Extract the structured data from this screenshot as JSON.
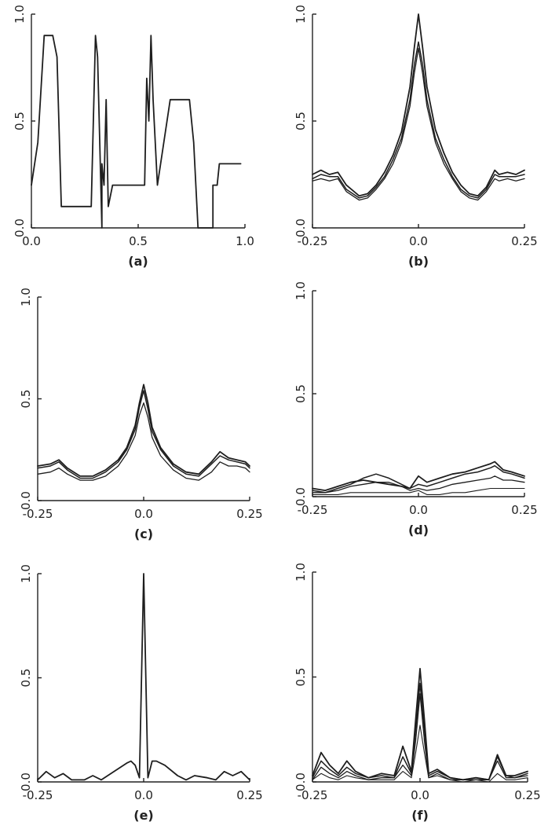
{
  "chart_data": [
    {
      "panel_label": "(a)",
      "type": "line",
      "xlim": [
        0.0,
        1.0
      ],
      "ylim": [
        0.0,
        1.0
      ],
      "xticks": [
        "0.0",
        "0.5",
        "1.0"
      ],
      "yticks": [
        "0.0",
        "0.5",
        "1.0"
      ],
      "series": [
        {
          "x": [
            0.0,
            0.03,
            0.06,
            0.1,
            0.12,
            0.14,
            0.28,
            0.3,
            0.31,
            0.33,
            0.33,
            0.34,
            0.35,
            0.36,
            0.38,
            0.53,
            0.54,
            0.55,
            0.56,
            0.57,
            0.59,
            0.65,
            0.67,
            0.74,
            0.76,
            0.78,
            0.78,
            0.85,
            0.85,
            0.87,
            0.88,
            0.9,
            0.98
          ],
          "y": [
            0.2,
            0.4,
            0.9,
            0.9,
            0.8,
            0.1,
            0.1,
            0.9,
            0.8,
            0.0,
            0.3,
            0.2,
            0.6,
            0.1,
            0.2,
            0.2,
            0.7,
            0.5,
            0.9,
            0.6,
            0.2,
            0.6,
            0.6,
            0.6,
            0.4,
            0.0,
            0.0,
            0.0,
            0.2,
            0.2,
            0.3,
            0.3,
            0.3
          ]
        }
      ]
    },
    {
      "panel_label": "(b)",
      "type": "line",
      "xlim": [
        -0.25,
        0.25
      ],
      "ylim": [
        0.0,
        1.0
      ],
      "xticks": [
        "-0.25",
        "0.0",
        "0.25"
      ],
      "yticks": [
        "0.0",
        "0.5",
        "1.0"
      ],
      "series": [
        {
          "x": [
            -0.25,
            -0.23,
            -0.21,
            -0.19,
            -0.17,
            -0.14,
            -0.12,
            -0.1,
            -0.08,
            -0.06,
            -0.04,
            -0.02,
            -0.01,
            0.0,
            0.01,
            0.02,
            0.04,
            0.06,
            0.08,
            0.1,
            0.12,
            0.14,
            0.16,
            0.18,
            0.19,
            0.21,
            0.23,
            0.25
          ],
          "y": [
            0.25,
            0.27,
            0.25,
            0.26,
            0.2,
            0.15,
            0.16,
            0.2,
            0.26,
            0.34,
            0.45,
            0.66,
            0.84,
            1.0,
            0.84,
            0.66,
            0.46,
            0.35,
            0.26,
            0.2,
            0.16,
            0.15,
            0.19,
            0.27,
            0.25,
            0.26,
            0.25,
            0.27
          ]
        },
        {
          "x": [
            -0.25,
            -0.23,
            -0.21,
            -0.19,
            -0.17,
            -0.14,
            -0.12,
            -0.1,
            -0.08,
            -0.06,
            -0.04,
            -0.02,
            -0.01,
            0.0,
            0.01,
            0.02,
            0.04,
            0.06,
            0.08,
            0.1,
            0.12,
            0.14,
            0.16,
            0.18,
            0.19,
            0.21,
            0.23,
            0.25
          ],
          "y": [
            0.23,
            0.25,
            0.24,
            0.24,
            0.18,
            0.14,
            0.15,
            0.19,
            0.24,
            0.32,
            0.42,
            0.6,
            0.76,
            0.87,
            0.76,
            0.6,
            0.42,
            0.32,
            0.24,
            0.18,
            0.15,
            0.14,
            0.18,
            0.25,
            0.24,
            0.24,
            0.24,
            0.25
          ]
        },
        {
          "x": [
            -0.25,
            -0.23,
            -0.21,
            -0.19,
            -0.17,
            -0.14,
            -0.12,
            -0.1,
            -0.08,
            -0.06,
            -0.04,
            -0.02,
            -0.01,
            0.0,
            0.01,
            0.02,
            0.04,
            0.06,
            0.08,
            0.1,
            0.12,
            0.14,
            0.16,
            0.18,
            0.19,
            0.21,
            0.23,
            0.25
          ],
          "y": [
            0.22,
            0.23,
            0.22,
            0.23,
            0.17,
            0.13,
            0.14,
            0.18,
            0.23,
            0.3,
            0.4,
            0.57,
            0.72,
            0.84,
            0.72,
            0.57,
            0.4,
            0.3,
            0.23,
            0.17,
            0.14,
            0.13,
            0.17,
            0.23,
            0.22,
            0.23,
            0.22,
            0.23
          ]
        }
      ]
    },
    {
      "panel_label": "(c)",
      "type": "line",
      "xlim": [
        -0.25,
        0.25
      ],
      "ylim": [
        0.0,
        1.0
      ],
      "xticks": [
        "-0.25",
        "0.0",
        "0.25"
      ],
      "yticks": [
        "0.0",
        "0.5",
        "1.0"
      ],
      "series": [
        {
          "x": [
            -0.25,
            -0.22,
            -0.2,
            -0.18,
            -0.15,
            -0.12,
            -0.09,
            -0.06,
            -0.04,
            -0.02,
            -0.01,
            0.0,
            0.01,
            0.02,
            0.04,
            0.07,
            0.1,
            0.13,
            0.16,
            0.18,
            0.2,
            0.22,
            0.24,
            0.25
          ],
          "y": [
            0.17,
            0.18,
            0.2,
            0.16,
            0.12,
            0.12,
            0.15,
            0.2,
            0.26,
            0.37,
            0.48,
            0.57,
            0.48,
            0.36,
            0.26,
            0.18,
            0.14,
            0.13,
            0.19,
            0.24,
            0.21,
            0.2,
            0.19,
            0.17
          ]
        },
        {
          "x": [
            -0.25,
            -0.22,
            -0.2,
            -0.18,
            -0.15,
            -0.12,
            -0.09,
            -0.06,
            -0.04,
            -0.02,
            -0.01,
            0.0,
            0.01,
            0.02,
            0.04,
            0.07,
            0.1,
            0.13,
            0.16,
            0.18,
            0.2,
            0.22,
            0.24,
            0.25
          ],
          "y": [
            0.16,
            0.17,
            0.19,
            0.15,
            0.11,
            0.11,
            0.14,
            0.19,
            0.25,
            0.35,
            0.46,
            0.54,
            0.45,
            0.34,
            0.25,
            0.17,
            0.13,
            0.12,
            0.18,
            0.22,
            0.2,
            0.19,
            0.18,
            0.16
          ]
        },
        {
          "x": [
            -0.25,
            -0.22,
            -0.2,
            -0.18,
            -0.15,
            -0.12,
            -0.09,
            -0.06,
            -0.04,
            -0.02,
            -0.01,
            0.0,
            0.01,
            0.02,
            0.04,
            0.07,
            0.1,
            0.13,
            0.16,
            0.18,
            0.2,
            0.22,
            0.24,
            0.25
          ],
          "y": [
            0.13,
            0.14,
            0.16,
            0.13,
            0.1,
            0.1,
            0.12,
            0.17,
            0.23,
            0.32,
            0.42,
            0.48,
            0.41,
            0.31,
            0.22,
            0.15,
            0.11,
            0.1,
            0.14,
            0.19,
            0.17,
            0.17,
            0.16,
            0.14
          ]
        }
      ]
    },
    {
      "panel_label": "(d)",
      "type": "line",
      "xlim": [
        -0.25,
        0.25
      ],
      "ylim": [
        0.0,
        1.0
      ],
      "xticks": [
        "-0.25",
        "0.0",
        "0.25"
      ],
      "yticks": [
        "0.0",
        "0.5",
        "1.0"
      ],
      "series": [
        {
          "x": [
            -0.25,
            -0.22,
            -0.19,
            -0.16,
            -0.13,
            -0.1,
            -0.07,
            -0.04,
            -0.02,
            0.0,
            0.02,
            0.05,
            0.08,
            0.11,
            0.14,
            0.17,
            0.18,
            0.2,
            0.22,
            0.25
          ],
          "y": [
            0.04,
            0.03,
            0.05,
            0.07,
            0.08,
            0.07,
            0.06,
            0.05,
            0.04,
            0.1,
            0.07,
            0.09,
            0.11,
            0.12,
            0.14,
            0.16,
            0.17,
            0.13,
            0.12,
            0.1
          ]
        },
        {
          "x": [
            -0.25,
            -0.22,
            -0.19,
            -0.16,
            -0.13,
            -0.1,
            -0.07,
            -0.04,
            -0.02,
            0.0,
            0.02,
            0.05,
            0.08,
            0.11,
            0.14,
            0.17,
            0.18,
            0.2,
            0.22,
            0.25
          ],
          "y": [
            0.03,
            0.02,
            0.04,
            0.06,
            0.09,
            0.11,
            0.09,
            0.06,
            0.04,
            0.06,
            0.05,
            0.07,
            0.09,
            0.11,
            0.12,
            0.14,
            0.15,
            0.12,
            0.11,
            0.09
          ]
        },
        {
          "x": [
            -0.25,
            -0.22,
            -0.19,
            -0.16,
            -0.13,
            -0.1,
            -0.07,
            -0.04,
            -0.02,
            0.0,
            0.02,
            0.05,
            0.08,
            0.11,
            0.14,
            0.17,
            0.18,
            0.2,
            0.22,
            0.25
          ],
          "y": [
            0.02,
            0.02,
            0.03,
            0.05,
            0.06,
            0.07,
            0.07,
            0.05,
            0.03,
            0.04,
            0.03,
            0.04,
            0.06,
            0.07,
            0.08,
            0.09,
            0.1,
            0.08,
            0.08,
            0.07
          ]
        },
        {
          "x": [
            -0.25,
            -0.22,
            -0.19,
            -0.16,
            -0.13,
            -0.1,
            -0.07,
            -0.04,
            -0.02,
            0.0,
            0.02,
            0.05,
            0.08,
            0.11,
            0.14,
            0.17,
            0.18,
            0.2,
            0.22,
            0.25
          ],
          "y": [
            0.01,
            0.01,
            0.01,
            0.02,
            0.02,
            0.02,
            0.02,
            0.02,
            0.02,
            0.03,
            0.01,
            0.01,
            0.02,
            0.02,
            0.03,
            0.04,
            0.04,
            0.04,
            0.04,
            0.04
          ]
        }
      ]
    },
    {
      "panel_label": "(e)",
      "type": "line",
      "xlim": [
        -0.25,
        0.25
      ],
      "ylim": [
        0.0,
        1.0
      ],
      "xticks": [
        "-0.25",
        "0.0",
        "0.25"
      ],
      "yticks": [
        "0.0",
        "0.5",
        "1.0"
      ],
      "series": [
        {
          "x": [
            -0.25,
            -0.23,
            -0.21,
            -0.19,
            -0.17,
            -0.14,
            -0.12,
            -0.1,
            -0.07,
            -0.04,
            -0.03,
            -0.02,
            -0.01,
            0.0,
            0.01,
            0.02,
            0.03,
            0.05,
            0.08,
            0.1,
            0.12,
            0.15,
            0.17,
            0.19,
            0.21,
            0.23,
            0.25
          ],
          "y": [
            0.01,
            0.05,
            0.02,
            0.04,
            0.01,
            0.01,
            0.03,
            0.01,
            0.05,
            0.09,
            0.1,
            0.08,
            0.02,
            1.0,
            0.02,
            0.1,
            0.1,
            0.08,
            0.03,
            0.01,
            0.03,
            0.02,
            0.01,
            0.05,
            0.03,
            0.05,
            0.01
          ]
        }
      ]
    },
    {
      "panel_label": "(f)",
      "type": "line",
      "xlim": [
        -0.25,
        0.25
      ],
      "ylim": [
        0.0,
        1.0
      ],
      "xticks": [
        "-0.25",
        "0.0",
        "0.25"
      ],
      "yticks": [
        "0.0",
        "0.5",
        "1.0"
      ],
      "series": [
        {
          "x": [
            -0.25,
            -0.23,
            -0.21,
            -0.19,
            -0.17,
            -0.15,
            -0.12,
            -0.09,
            -0.06,
            -0.04,
            -0.02,
            -0.01,
            0.0,
            0.01,
            0.02,
            0.04,
            0.07,
            0.1,
            0.13,
            0.16,
            0.18,
            0.2,
            0.22,
            0.25
          ],
          "y": [
            0.03,
            0.14,
            0.08,
            0.04,
            0.1,
            0.05,
            0.02,
            0.04,
            0.03,
            0.17,
            0.05,
            0.3,
            0.54,
            0.3,
            0.04,
            0.06,
            0.02,
            0.01,
            0.02,
            0.01,
            0.13,
            0.03,
            0.03,
            0.05
          ]
        },
        {
          "x": [
            -0.25,
            -0.23,
            -0.21,
            -0.19,
            -0.17,
            -0.15,
            -0.12,
            -0.09,
            -0.06,
            -0.04,
            -0.02,
            -0.01,
            0.0,
            0.01,
            0.02,
            0.04,
            0.07,
            0.1,
            0.13,
            0.16,
            0.18,
            0.2,
            0.22,
            0.25
          ],
          "y": [
            0.02,
            0.1,
            0.06,
            0.03,
            0.07,
            0.04,
            0.02,
            0.03,
            0.02,
            0.12,
            0.04,
            0.25,
            0.47,
            0.25,
            0.03,
            0.05,
            0.02,
            0.01,
            0.02,
            0.01,
            0.12,
            0.03,
            0.02,
            0.04
          ]
        },
        {
          "x": [
            -0.25,
            -0.23,
            -0.21,
            -0.19,
            -0.17,
            -0.15,
            -0.12,
            -0.09,
            -0.06,
            -0.04,
            -0.02,
            -0.01,
            0.0,
            0.01,
            0.02,
            0.04,
            0.07,
            0.1,
            0.13,
            0.16,
            0.18,
            0.2,
            0.22,
            0.25
          ],
          "y": [
            0.01,
            0.07,
            0.04,
            0.02,
            0.05,
            0.03,
            0.01,
            0.02,
            0.02,
            0.08,
            0.03,
            0.2,
            0.42,
            0.2,
            0.02,
            0.04,
            0.01,
            0.01,
            0.01,
            0.01,
            0.1,
            0.02,
            0.02,
            0.03
          ]
        },
        {
          "x": [
            -0.25,
            -0.23,
            -0.21,
            -0.19,
            -0.17,
            -0.15,
            -0.12,
            -0.09,
            -0.06,
            -0.04,
            -0.02,
            -0.01,
            0.0,
            0.01,
            0.02,
            0.04,
            0.07,
            0.1,
            0.13,
            0.16,
            0.18,
            0.2,
            0.22,
            0.25
          ],
          "y": [
            0.01,
            0.04,
            0.02,
            0.01,
            0.03,
            0.02,
            0.01,
            0.01,
            0.01,
            0.05,
            0.02,
            0.14,
            0.27,
            0.14,
            0.02,
            0.03,
            0.01,
            0.0,
            0.01,
            0.0,
            0.04,
            0.01,
            0.01,
            0.02
          ]
        }
      ]
    }
  ]
}
